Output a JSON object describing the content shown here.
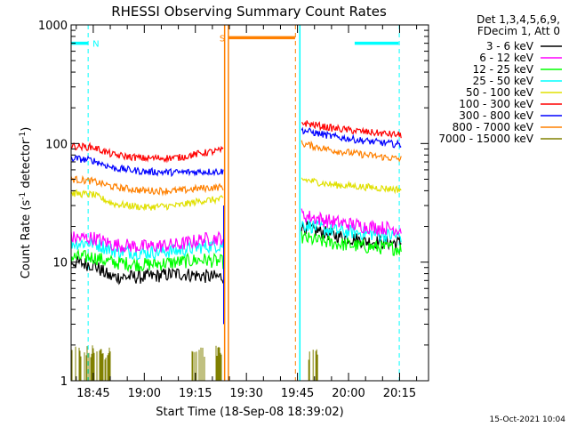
{
  "chart_data": {
    "type": "line",
    "title": "RHESSI Observing Summary Count Rates",
    "xlabel": "Start Time (18-Sep-08 18:39:02)",
    "ylabel_main": "Count Rate (s",
    "ylabel_sup1": "-1",
    "ylabel_mid": " detector",
    "ylabel_sup2": "-1",
    "ylabel_end": ")",
    "yscale": "log",
    "ylim": [
      1,
      1000
    ],
    "xlim_minutes": [
      -6.5,
      98.5
    ],
    "x_tick_labels": [
      "18:45",
      "19:00",
      "19:15",
      "19:30",
      "19:45",
      "20:00",
      "20:15"
    ],
    "x_tick_minutes": [
      0,
      15,
      30,
      45,
      60,
      75,
      90
    ],
    "y_tick_labels": [
      "1",
      "10",
      "100",
      "1000"
    ],
    "y_tick_values": [
      1,
      10,
      100,
      1000
    ],
    "legend_header": [
      "Det 1,3,4,5,6,9,",
      "FDecim 1, Att 0"
    ],
    "legend_position": "right",
    "timestamp": "15-Oct-2021 10:04",
    "flags": [
      {
        "label": "N",
        "color": "#00ffff",
        "start": -6.5,
        "end": -1.5,
        "level": 700
      },
      {
        "label": "S",
        "color": "#ff8000",
        "start": 39.7,
        "end": 59.3,
        "level": 780
      },
      {
        "label": "",
        "color": "#00ffff",
        "start": 76.8,
        "end": 89.7,
        "level": 700
      }
    ],
    "vlines": [
      {
        "x": -1.5,
        "color": "#00ffff",
        "dashed": true
      },
      {
        "x": 38.6,
        "color": "#ff8000",
        "dashed": false
      },
      {
        "x": 39.7,
        "color": "#ff8000",
        "dashed": false
      },
      {
        "x": 59.4,
        "color": "#ff8000",
        "dashed": true
      },
      {
        "x": 60.7,
        "color": "#00ffff",
        "dashed": false
      },
      {
        "x": 89.9,
        "color": "#00ffff",
        "dashed": true
      }
    ],
    "segments": [
      [
        -6.5,
        38.3
      ],
      [
        61.2,
        90.5
      ]
    ],
    "series": [
      {
        "name": "3 - 6 keV",
        "color": "#000000",
        "seg1": [
          [
            -6,
            10
          ],
          [
            0,
            9.5
          ],
          [
            5,
            7.5
          ],
          [
            15,
            7.5
          ],
          [
            25,
            8
          ],
          [
            35,
            7.5
          ],
          [
            38.3,
            7.5
          ]
        ],
        "seg2": [
          [
            61.2,
            20
          ],
          [
            70,
            17
          ],
          [
            80,
            15
          ],
          [
            90,
            14.5
          ]
        ]
      },
      {
        "name": "6 - 12 keV",
        "color": "#ff00ff",
        "seg1": [
          [
            -6,
            16
          ],
          [
            0,
            16
          ],
          [
            6,
            14
          ],
          [
            15,
            13.5
          ],
          [
            25,
            14
          ],
          [
            32,
            15.5
          ],
          [
            38.3,
            16
          ]
        ],
        "seg2": [
          [
            61.2,
            25
          ],
          [
            70,
            22
          ],
          [
            80,
            20
          ],
          [
            90,
            19
          ]
        ]
      },
      {
        "name": "12 - 25 keV",
        "color": "#00ff00",
        "seg1": [
          [
            -6,
            11
          ],
          [
            0,
            11
          ],
          [
            5,
            10
          ],
          [
            15,
            9.5
          ],
          [
            25,
            10
          ],
          [
            32,
            10.5
          ],
          [
            38.3,
            10
          ]
        ],
        "seg2": [
          [
            61.2,
            16
          ],
          [
            70,
            14.5
          ],
          [
            80,
            13.5
          ],
          [
            90,
            13
          ]
        ]
      },
      {
        "name": "25 - 50 keV",
        "color": "#00ffff",
        "seg1": [
          [
            -6,
            14.5
          ],
          [
            0,
            14.5
          ],
          [
            6,
            12.5
          ],
          [
            15,
            12
          ],
          [
            25,
            12.5
          ],
          [
            32,
            13.5
          ],
          [
            38.3,
            14
          ]
        ],
        "seg2": [
          [
            61.2,
            21
          ],
          [
            70,
            18.5
          ],
          [
            80,
            17.5
          ],
          [
            90,
            16.5
          ]
        ]
      },
      {
        "name": "50 - 100 keV",
        "color": "#e0e000",
        "seg1": [
          [
            -6,
            38
          ],
          [
            0,
            37
          ],
          [
            6,
            31
          ],
          [
            15,
            29
          ],
          [
            25,
            30
          ],
          [
            32,
            33
          ],
          [
            38.3,
            34
          ]
        ],
        "seg2": [
          [
            61.2,
            50
          ],
          [
            70,
            45
          ],
          [
            80,
            43
          ],
          [
            90,
            41
          ]
        ]
      },
      {
        "name": "100 - 300 keV",
        "color": "#ff0000",
        "seg1": [
          [
            -6,
            95
          ],
          [
            0,
            93
          ],
          [
            6,
            80
          ],
          [
            15,
            75
          ],
          [
            25,
            76
          ],
          [
            32,
            83
          ],
          [
            38.3,
            88
          ]
        ],
        "seg2": [
          [
            61.2,
            150
          ],
          [
            70,
            135
          ],
          [
            80,
            125
          ],
          [
            90,
            118
          ]
        ]
      },
      {
        "name": "300 - 800 keV",
        "color": "#0000ff",
        "seg1": [
          [
            -6,
            75
          ],
          [
            0,
            72
          ],
          [
            6,
            62
          ],
          [
            15,
            58
          ],
          [
            25,
            57
          ],
          [
            32,
            58
          ],
          [
            38.3,
            58
          ]
        ],
        "seg2": [
          [
            61.2,
            130
          ],
          [
            70,
            115
          ],
          [
            80,
            105
          ],
          [
            90,
            98
          ]
        ]
      },
      {
        "name": "800 - 7000 keV",
        "color": "#ff8000",
        "seg1": [
          [
            -6,
            50
          ],
          [
            0,
            48
          ],
          [
            6,
            43
          ],
          [
            15,
            40
          ],
          [
            25,
            40
          ],
          [
            32,
            42
          ],
          [
            38.3,
            43
          ]
        ],
        "seg2": [
          [
            61.2,
            100
          ],
          [
            70,
            88
          ],
          [
            80,
            80
          ],
          [
            90,
            74
          ]
        ]
      },
      {
        "name": "7000 - 15000 keV",
        "color": "#808000",
        "seg1": [
          [
            -6,
            1
          ],
          [
            38.3,
            1
          ]
        ],
        "seg2": [
          [
            61.2,
            1
          ],
          [
            90.5,
            1
          ]
        ]
      }
    ]
  }
}
